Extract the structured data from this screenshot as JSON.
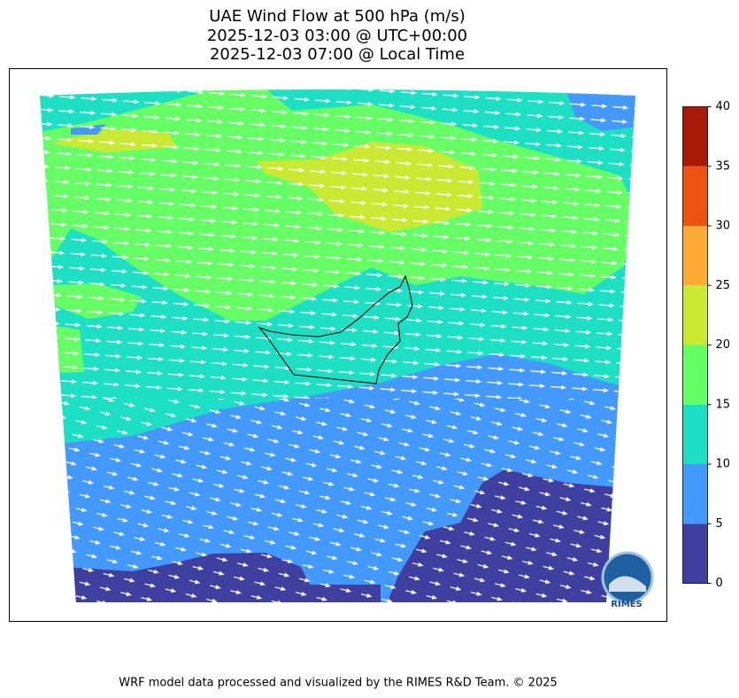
{
  "title_lines": [
    "UAE Wind Flow at 500 hPa (m/s)",
    "2025-12-03 03:00 @ UTC+00:00",
    "2025-12-03 07:00 @ Local Time"
  ],
  "colorbar": {
    "ticks": [
      0,
      5,
      10,
      15,
      20,
      25,
      30,
      35,
      40
    ],
    "colors": [
      "#3f3f9f",
      "#4499ff",
      "#1ddfc4",
      "#66ff66",
      "#cbe933",
      "#ffaa33",
      "#ec5312",
      "#a81a05"
    ]
  },
  "logo": {
    "label": "RIMES"
  },
  "footer": "WRF model data processed and visualized by the RIMES R&D Team. © 2025"
}
